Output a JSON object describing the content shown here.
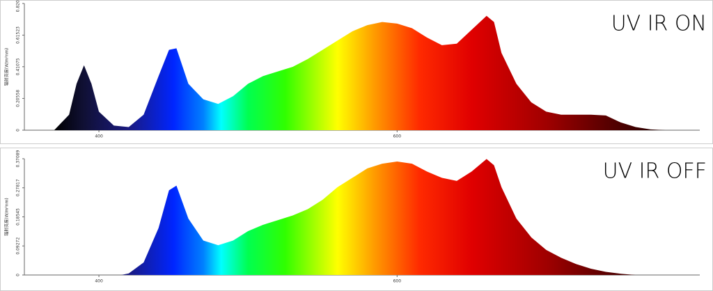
{
  "chart_data": [
    {
      "type": "area",
      "title": "UV IR ON",
      "ylabel": "辐射亮度(W/m²nm)",
      "x": [
        370,
        380,
        385,
        390,
        395,
        400,
        410,
        420,
        430,
        440,
        447,
        452,
        460,
        470,
        480,
        490,
        500,
        510,
        520,
        530,
        540,
        550,
        560,
        570,
        580,
        590,
        600,
        610,
        620,
        630,
        640,
        650,
        660,
        665,
        670,
        680,
        690,
        700,
        710,
        720,
        730,
        740,
        750,
        760,
        770,
        780
      ],
      "values": [
        0,
        0.1,
        0.3,
        0.42,
        0.3,
        0.12,
        0.03,
        0.02,
        0.1,
        0.35,
        0.52,
        0.53,
        0.3,
        0.2,
        0.17,
        0.22,
        0.3,
        0.35,
        0.38,
        0.41,
        0.46,
        0.52,
        0.58,
        0.64,
        0.68,
        0.7,
        0.69,
        0.66,
        0.6,
        0.55,
        0.56,
        0.65,
        0.74,
        0.7,
        0.5,
        0.3,
        0.18,
        0.12,
        0.1,
        0.1,
        0.1,
        0.095,
        0.05,
        0.02,
        0.005,
        0
      ],
      "xlim": [
        350,
        803
      ],
      "xticks": [
        400,
        600
      ],
      "ylim": [
        0,
        0.82
      ],
      "yticks": [
        0,
        0.20558,
        0.41075,
        0.61523,
        {
          "value": 0.82,
          "label": "0.82000"
        }
      ]
    },
    {
      "type": "area",
      "title": "UV IR OFF",
      "ylabel": "辐射亮度(W/m²nm)",
      "x": [
        415,
        420,
        430,
        440,
        447,
        452,
        460,
        470,
        480,
        490,
        500,
        510,
        520,
        530,
        540,
        550,
        560,
        570,
        580,
        590,
        600,
        610,
        620,
        630,
        640,
        650,
        660,
        665,
        670,
        680,
        690,
        700,
        710,
        720,
        730,
        740,
        750,
        760
      ],
      "values": [
        0,
        0.005,
        0.04,
        0.15,
        0.27,
        0.285,
        0.18,
        0.11,
        0.095,
        0.11,
        0.14,
        0.16,
        0.175,
        0.19,
        0.21,
        0.24,
        0.28,
        0.31,
        0.34,
        0.355,
        0.362,
        0.355,
        0.33,
        0.31,
        0.3,
        0.33,
        0.37,
        0.35,
        0.28,
        0.18,
        0.12,
        0.08,
        0.055,
        0.035,
        0.02,
        0.01,
        0.004,
        0
      ],
      "xlim": [
        350,
        803
      ],
      "xticks": [
        400,
        600
      ],
      "ylim": [
        0,
        0.37089
      ],
      "yticks": [
        0,
        0.09272,
        0.18545,
        0.27817,
        0.37089
      ]
    }
  ]
}
